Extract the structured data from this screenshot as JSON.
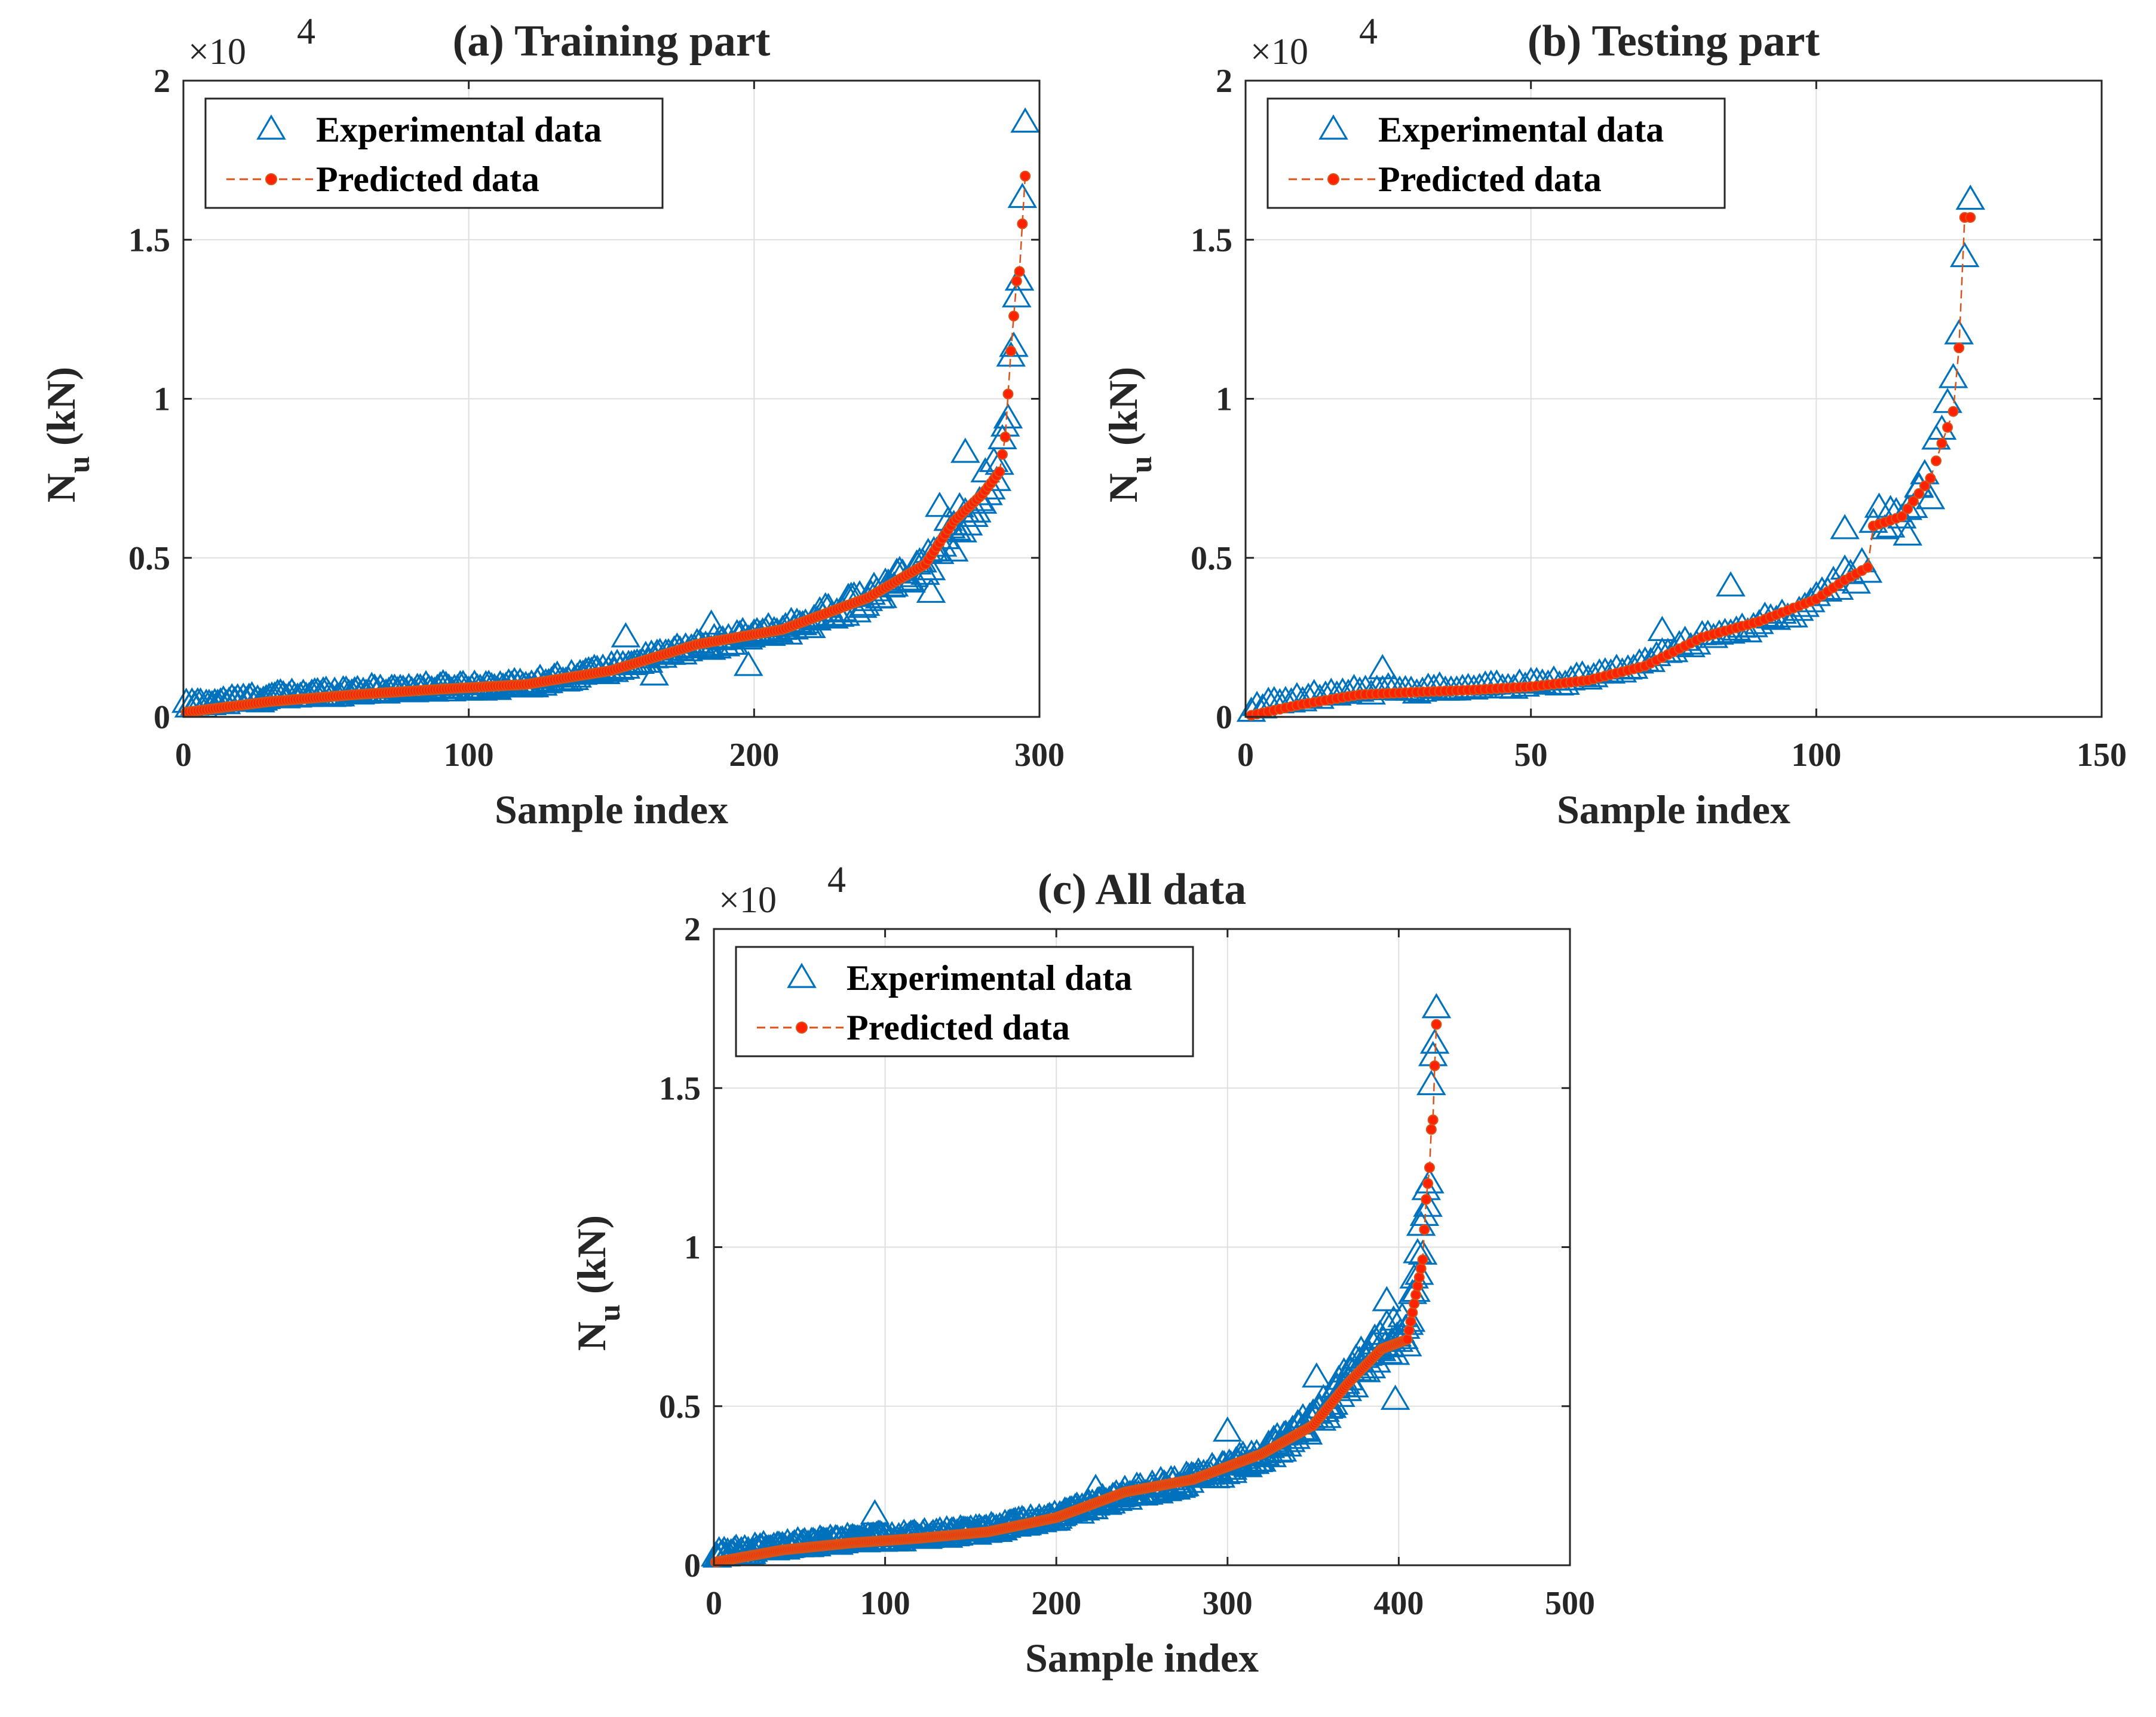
{
  "colors": {
    "experimental": "#0072BD",
    "predicted_line": "#D95319",
    "predicted_marker": "#FF2200",
    "axis": "#262626",
    "grid": "#DFDFDF"
  },
  "legend": {
    "experimental": "Experimental data",
    "predicted": "Predicted data"
  },
  "chart_data": [
    {
      "type": "scatter",
      "title": "(a) Training part",
      "xlabel": "Sample index",
      "ylabel": "N_u (kN)",
      "ylabel_main": "N",
      "ylabel_sub": "u",
      "ylabel_unit": " (kN)",
      "y_multiplier": "×10",
      "y_multiplier_exp": "4",
      "xlim": [
        0,
        300
      ],
      "ylim": [
        0,
        20000
      ],
      "xticks": [
        "0",
        "100",
        "200",
        "300"
      ],
      "yticks": [
        "0",
        "0.5",
        "1",
        "1.5",
        "2"
      ],
      "n": 295,
      "predicted": [
        [
          1,
          150
        ],
        [
          30,
          480
        ],
        [
          60,
          700
        ],
        [
          90,
          870
        ],
        [
          120,
          1020
        ],
        [
          150,
          1460
        ],
        [
          180,
          2280
        ],
        [
          210,
          2750
        ],
        [
          240,
          3750
        ],
        [
          260,
          4800
        ],
        [
          270,
          6150
        ],
        [
          280,
          7000
        ],
        [
          286,
          7700
        ],
        [
          288,
          8800
        ],
        [
          290,
          11500
        ],
        [
          291,
          12600
        ],
        [
          292,
          13700
        ],
        [
          293,
          14000
        ],
        [
          295,
          17000
        ]
      ],
      "experimental": [
        [
          1,
          350
        ],
        [
          30,
          600
        ],
        [
          60,
          800
        ],
        [
          90,
          900
        ],
        [
          120,
          1000
        ],
        [
          150,
          1500
        ],
        [
          180,
          2200
        ],
        [
          210,
          2700
        ],
        [
          240,
          3700
        ],
        [
          260,
          4700
        ],
        [
          270,
          6000
        ],
        [
          280,
          7000
        ],
        [
          286,
          8000
        ],
        [
          288,
          8800
        ],
        [
          290,
          11500
        ],
        [
          291,
          12600
        ],
        [
          292,
          13700
        ],
        [
          293,
          14200
        ],
        [
          295,
          17900
        ]
      ],
      "exp_outliers": [
        [
          198,
          1600
        ],
        [
          185,
          2900
        ],
        [
          165,
          1300
        ],
        [
          155,
          2500
        ],
        [
          274,
          8300
        ],
        [
          270,
          5200
        ],
        [
          265,
          6600
        ],
        [
          262,
          3900
        ]
      ]
    },
    {
      "type": "scatter",
      "title": "(b) Testing part",
      "xlabel": "Sample index",
      "ylabel": "N_u (kN)",
      "ylabel_main": "N",
      "ylabel_sub": "u",
      "ylabel_unit": " (kN)",
      "y_multiplier": "×10",
      "y_multiplier_exp": "4",
      "xlim": [
        0,
        150
      ],
      "ylim": [
        0,
        20000
      ],
      "xticks": [
        "0",
        "50",
        "100",
        "150"
      ],
      "yticks": [
        "0",
        "0.5",
        "1",
        "1.5",
        "2"
      ],
      "n": 127,
      "predicted": [
        [
          1,
          50
        ],
        [
          10,
          400
        ],
        [
          20,
          700
        ],
        [
          30,
          780
        ],
        [
          40,
          850
        ],
        [
          50,
          950
        ],
        [
          60,
          1150
        ],
        [
          70,
          1600
        ],
        [
          80,
          2500
        ],
        [
          90,
          3000
        ],
        [
          100,
          3700
        ],
        [
          105,
          4300
        ],
        [
          109,
          4700
        ],
        [
          110,
          6000
        ],
        [
          115,
          6300
        ],
        [
          120,
          7500
        ],
        [
          122,
          8600
        ],
        [
          124,
          9600
        ],
        [
          125,
          11600
        ],
        [
          126,
          15700
        ],
        [
          127,
          15700
        ]
      ],
      "experimental": [
        [
          1,
          250
        ],
        [
          10,
          550
        ],
        [
          20,
          800
        ],
        [
          30,
          850
        ],
        [
          40,
          900
        ],
        [
          50,
          1000
        ],
        [
          60,
          1200
        ],
        [
          70,
          1700
        ],
        [
          80,
          2500
        ],
        [
          90,
          2900
        ],
        [
          100,
          3600
        ],
        [
          105,
          4400
        ],
        [
          109,
          4600
        ],
        [
          110,
          6100
        ],
        [
          115,
          6400
        ],
        [
          120,
          7300
        ],
        [
          122,
          8900
        ],
        [
          124,
          10300
        ],
        [
          125,
          11400
        ],
        [
          126,
          15400
        ],
        [
          127,
          16500
        ]
      ],
      "exp_outliers": [
        [
          24,
          1500
        ],
        [
          73,
          2700
        ],
        [
          85,
          4100
        ],
        [
          105,
          5900
        ],
        [
          113,
          6500
        ],
        [
          116,
          5700
        ],
        [
          118,
          7200
        ]
      ]
    },
    {
      "type": "scatter",
      "title": "(c) All data",
      "xlabel": "Sample index",
      "ylabel": "N_u (kN)",
      "ylabel_main": "N",
      "ylabel_sub": "u",
      "ylabel_unit": " (kN)",
      "y_multiplier": "×10",
      "y_multiplier_exp": "4",
      "xlim": [
        0,
        500
      ],
      "ylim": [
        0,
        20000
      ],
      "xticks": [
        "0",
        "100",
        "200",
        "300",
        "400",
        "500"
      ],
      "yticks": [
        "0",
        "0.5",
        "1",
        "1.5",
        "2"
      ],
      "n": 422,
      "predicted": [
        [
          1,
          100
        ],
        [
          40,
          480
        ],
        [
          80,
          700
        ],
        [
          120,
          850
        ],
        [
          160,
          1050
        ],
        [
          200,
          1500
        ],
        [
          240,
          2300
        ],
        [
          280,
          2700
        ],
        [
          320,
          3500
        ],
        [
          350,
          4400
        ],
        [
          370,
          5700
        ],
        [
          390,
          6800
        ],
        [
          405,
          7100
        ],
        [
          410,
          8500
        ],
        [
          414,
          9600
        ],
        [
          416,
          11500
        ],
        [
          418,
          12500
        ],
        [
          419,
          13700
        ],
        [
          420,
          14000
        ],
        [
          421,
          15700
        ],
        [
          422,
          17000
        ]
      ],
      "experimental": [
        [
          1,
          300
        ],
        [
          40,
          600
        ],
        [
          80,
          800
        ],
        [
          120,
          900
        ],
        [
          160,
          1100
        ],
        [
          200,
          1500
        ],
        [
          240,
          2200
        ],
        [
          280,
          2700
        ],
        [
          320,
          3400
        ],
        [
          350,
          4500
        ],
        [
          370,
          5800
        ],
        [
          390,
          7000
        ],
        [
          405,
          7300
        ],
        [
          410,
          8800
        ],
        [
          414,
          10400
        ],
        [
          416,
          11400
        ],
        [
          418,
          12800
        ],
        [
          419,
          14000
        ],
        [
          420,
          15400
        ],
        [
          421,
          16500
        ],
        [
          422,
          17900
        ]
      ],
      "exp_outliers": [
        [
          94,
          1600
        ],
        [
          223,
          2400
        ],
        [
          300,
          4200
        ],
        [
          352,
          5900
        ],
        [
          393,
          8300
        ],
        [
          398,
          5200
        ],
        [
          303,
          2900
        ]
      ]
    }
  ]
}
